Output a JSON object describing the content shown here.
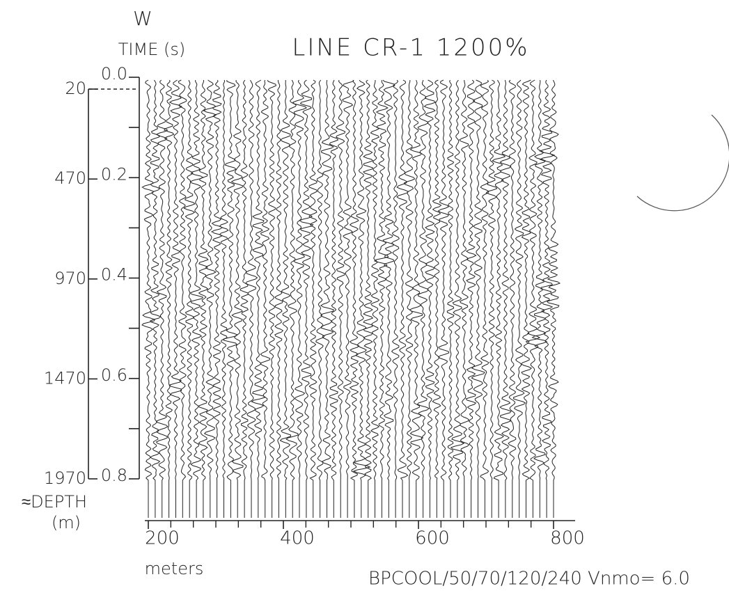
{
  "chart_data": {
    "type": "seismic",
    "title": "LINE CR-1 1200%",
    "direction": "W",
    "ylabel": "TIME (s)",
    "y2label": [
      "≈DEPTH",
      "(m)"
    ],
    "xlabel": "meters",
    "annotation": "BPCOOL/50/70/120/240 Vnmo= 6.0",
    "ylim": [
      0,
      0.8
    ],
    "yticks": [
      {
        "value": 0,
        "label": "0.0"
      },
      {
        "value": 0.2,
        "label": "0.2"
      },
      {
        "value": 0.4,
        "label": "0.4"
      },
      {
        "value": 0.6,
        "label": "0.6"
      },
      {
        "value": 0.8,
        "label": "0.8"
      }
    ],
    "y2lim": [
      20,
      1970
    ],
    "y2ticks": [
      20,
      470,
      970,
      1470,
      1970
    ],
    "xlim": [
      200,
      800
    ],
    "xticks": [
      200,
      400,
      600,
      800
    ],
    "color": "#222222"
  }
}
